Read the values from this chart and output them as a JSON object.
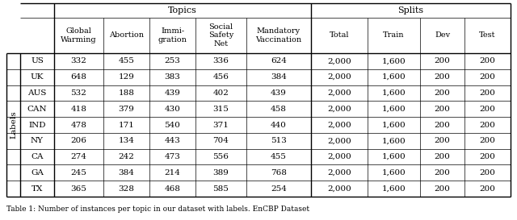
{
  "row_label": "Labels",
  "labels": [
    "US",
    "UK",
    "AUS",
    "CAN",
    "IND",
    "NY",
    "CA",
    "GA",
    "TX"
  ],
  "col_headers": [
    "Global\nWarming",
    "Abortion",
    "Immi-\ngration",
    "Social\nSafety\nNet",
    "Mandatory\nVaccination",
    "Total",
    "Train",
    "Dev",
    "Test"
  ],
  "data": [
    [
      "332",
      "455",
      "253",
      "336",
      "624",
      "2,000",
      "1,600",
      "200",
      "200"
    ],
    [
      "648",
      "129",
      "383",
      "456",
      "384",
      "2,000",
      "1,600",
      "200",
      "200"
    ],
    [
      "532",
      "188",
      "439",
      "402",
      "439",
      "2,000",
      "1,600",
      "200",
      "200"
    ],
    [
      "418",
      "379",
      "430",
      "315",
      "458",
      "2,000",
      "1,600",
      "200",
      "200"
    ],
    [
      "478",
      "171",
      "540",
      "371",
      "440",
      "2,000",
      "1,600",
      "200",
      "200"
    ],
    [
      "206",
      "134",
      "443",
      "704",
      "513",
      "2,000",
      "1,600",
      "200",
      "200"
    ],
    [
      "274",
      "242",
      "473",
      "556",
      "455",
      "2,000",
      "1,600",
      "200",
      "200"
    ],
    [
      "245",
      "384",
      "214",
      "389",
      "768",
      "2,000",
      "1,600",
      "200",
      "200"
    ],
    [
      "365",
      "328",
      "468",
      "585",
      "254",
      "2,000",
      "1,600",
      "200",
      "200"
    ]
  ],
  "background_color": "#ffffff",
  "line_color": "#000000",
  "font_size": 7.5,
  "caption_font_size": 6.5,
  "caption": "Table 1: Number of instances per topic in our dataset with labels. EnCBP Dataset"
}
